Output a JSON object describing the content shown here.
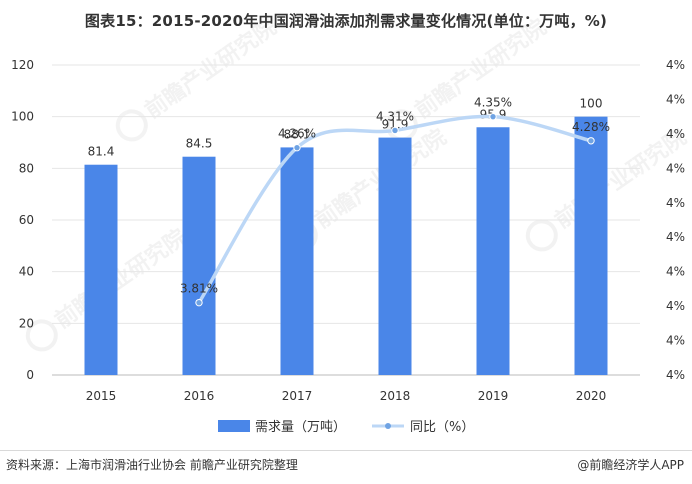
{
  "title": "图表15：2015-2020年中国润滑油添加剂需求量变化情况(单位：万吨，%)",
  "source": "资料来源：上海市润滑油行业协会 前瞻产业研究院整理",
  "brand": "@前瞻经济学人APP",
  "watermark": "前瞻产业研究院",
  "colors": {
    "bar": "#4A86E8",
    "line": "#BCD7F6",
    "marker": "#6FA3E3",
    "grid": "#E6E6E6"
  },
  "chart_data": {
    "type": "bar+line",
    "categories": [
      "2015",
      "2016",
      "2017",
      "2018",
      "2019",
      "2020"
    ],
    "series": [
      {
        "name": "需求量（万吨）",
        "type": "bar",
        "axis": "left",
        "values": [
          81.4,
          84.5,
          88.1,
          91.9,
          95.9,
          100
        ],
        "labels": [
          "81.4",
          "84.5",
          "88.1",
          "91.9",
          "95.9",
          "100"
        ]
      },
      {
        "name": "同比（%）",
        "type": "line",
        "axis": "right",
        "values": [
          null,
          3.81,
          4.26,
          4.31,
          4.35,
          4.28
        ],
        "labels": [
          "",
          "3.81%",
          "4.26%",
          "4.31%",
          "4.35%",
          "4.28%"
        ]
      }
    ],
    "y_left": {
      "min": 0,
      "max": 120,
      "ticks": [
        "0",
        "20",
        "40",
        "60",
        "80",
        "100",
        "120"
      ]
    },
    "y_right": {
      "min": 3.6,
      "max": 4.5,
      "ticks": [
        "4%",
        "4%",
        "4%",
        "4%",
        "4%",
        "4%",
        "4%",
        "4%",
        "4%",
        "4%"
      ]
    },
    "grid": true,
    "legend": "bottom"
  }
}
